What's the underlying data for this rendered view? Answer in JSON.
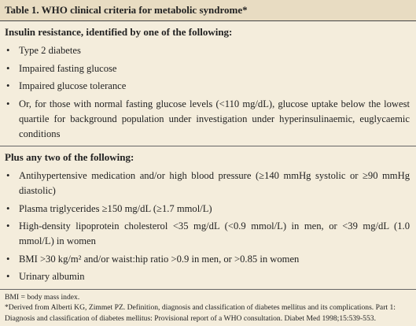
{
  "table": {
    "title": "Table 1. WHO clinical criteria for metabolic syndrome*",
    "sections": [
      {
        "heading": "Insulin resistance, identified by one of the following:",
        "items": [
          "Type 2 diabetes",
          "Impaired fasting glucose",
          "Impaired glucose tolerance",
          "Or, for those with normal fasting glucose levels (<110 mg/dL), glucose uptake below the lowest quartile for background population under investigation under hyperinsulinaemic, euglycaemic conditions"
        ]
      },
      {
        "heading": "Plus any two of the following:",
        "items": [
          "Antihypertensive medication and/or high blood pressure (≥140 mmHg systolic or ≥90 mmHg diastolic)",
          "Plasma triglycerides ≥150 mg/dL (≥1.7 mmol/L)",
          "High-density lipoprotein cholesterol <35 mg/dL (<0.9 mmol/L) in men, or <39 mg/dL (1.0 mmol/L) in women",
          "BMI >30 kg/m² and/or waist:hip ratio >0.9 in men, or >0.85 in women",
          "Urinary albumin"
        ]
      }
    ],
    "footnotes": [
      "BMI = body mass index.",
      "*Derived from Alberti KG, Zimmet PZ. Definition, diagnosis and classification of diabetes mellitus and its complications. Part 1: Diagnosis and classification of diabetes mellitus: Provisional report of a WHO consultation. Diabet Med 1998;15:539-553."
    ]
  }
}
